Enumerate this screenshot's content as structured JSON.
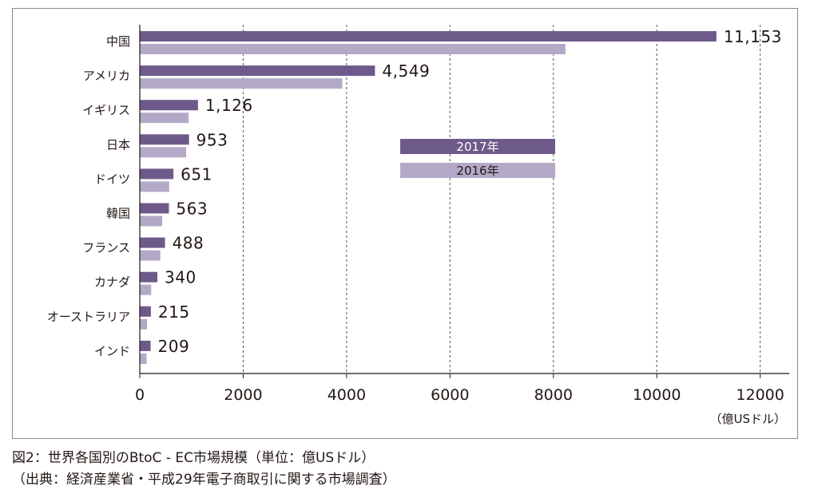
{
  "chart_data": {
    "type": "bar",
    "orientation": "horizontal",
    "categories": [
      "中国",
      "アメリカ",
      "イギリス",
      "日本",
      "ドイツ",
      "韓国",
      "フランス",
      "カナダ",
      "オーストラリア",
      "インド"
    ],
    "series": [
      {
        "name": "2017年",
        "color": "#6e5a8a",
        "values": [
          11153,
          4549,
          1126,
          953,
          651,
          563,
          488,
          340,
          215,
          209
        ]
      },
      {
        "name": "2016年",
        "color": "#b3a9c6",
        "values": [
          8233,
          3917,
          944,
          896,
          569,
          433,
          396,
          221,
          139,
          132
        ]
      }
    ],
    "data_labels": [
      "11,153",
      "4,549",
      "1,126",
      "953",
      "651",
      "563",
      "488",
      "340",
      "215",
      "209"
    ],
    "x_ticks": [
      0,
      2000,
      4000,
      6000,
      8000,
      10000,
      12000
    ],
    "xlim": [
      0,
      12500
    ],
    "xlabel": "（億USドル）",
    "grid": "vertical-dashed",
    "legend_position": "center"
  },
  "captions": [
    "図2：世界各国別のBtoC - EC市場規模（単位：億USドル）",
    "（出典：経済産業省・平成29年電子商取引に関する市場調査）"
  ]
}
